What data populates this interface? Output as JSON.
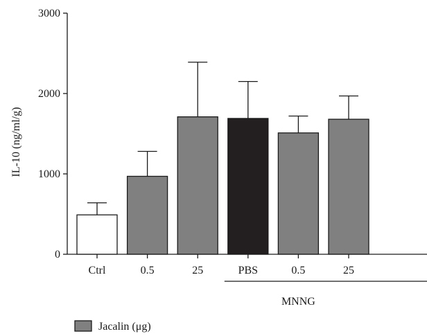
{
  "chart_data": {
    "type": "bar",
    "categories": [
      "Ctrl",
      "0.5",
      "25",
      "PBS",
      "0.5",
      "25"
    ],
    "values": [
      490,
      970,
      1710,
      1690,
      1510,
      1680
    ],
    "errors": [
      150,
      310,
      680,
      460,
      210,
      290
    ],
    "bar_colors": [
      "#ffffff",
      "#808080",
      "#808080",
      "#231f20",
      "#808080",
      "#808080"
    ],
    "ylabel": "IL-10 (ng/ml/g)",
    "ylim": [
      0,
      3000
    ],
    "yticks": [
      0,
      1000,
      2000,
      3000
    ],
    "grid": false,
    "group_label": {
      "text": "MNNG",
      "covers": [
        "PBS",
        "0.5",
        "25"
      ]
    },
    "legend": {
      "label": "Jacalin (μg)",
      "color": "#808080",
      "position": "bottom-left"
    }
  }
}
